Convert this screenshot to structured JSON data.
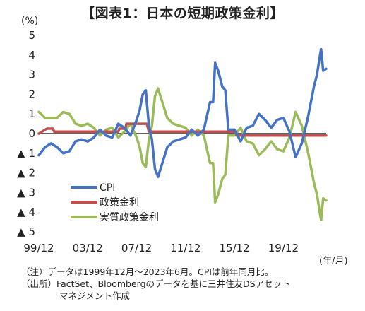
{
  "title": "【図表1：日本の短期政策金利】",
  "y_unit": "(%)",
  "x_unit": "(年/月)",
  "notes": [
    "（注）データは1999年12月～2023年6月。CPIは前年同月比。",
    "（出所）FactSet、Bloombergのデータを基に三井住友DSアセット",
    "マネジメント作成"
  ],
  "colors": {
    "cpi": "#4472c4",
    "policy": "#c0504d",
    "real": "#9bbb59",
    "axis": "#000000"
  },
  "chart_data": {
    "type": "line",
    "title": "【図表1：日本の短期政策金利】",
    "ylabel": "(%)",
    "xlabel": "(年/月)",
    "ylim": [
      -5,
      5
    ],
    "xlim": [
      "1999-12",
      "2023-06"
    ],
    "grid": false,
    "legend_position": "bottom-left",
    "y_ticks": [
      {
        "value": 5,
        "label": "5"
      },
      {
        "value": 4,
        "label": "4"
      },
      {
        "value": 3,
        "label": "3"
      },
      {
        "value": 2,
        "label": "2"
      },
      {
        "value": 1,
        "label": "1"
      },
      {
        "value": 0,
        "label": "0"
      },
      {
        "value": -1,
        "label": "▲ 1"
      },
      {
        "value": -2,
        "label": "▲ 2"
      },
      {
        "value": -3,
        "label": "▲ 3"
      },
      {
        "value": -4,
        "label": "▲ 4"
      },
      {
        "value": -5,
        "label": "▲ 5"
      }
    ],
    "x_ticks": [
      {
        "value": "1999-12",
        "label": "99/12"
      },
      {
        "value": "2003-12",
        "label": "03/12"
      },
      {
        "value": "2007-12",
        "label": "07/12"
      },
      {
        "value": "2011-12",
        "label": "11/12"
      },
      {
        "value": "2015-12",
        "label": "15/12"
      },
      {
        "value": "2019-12",
        "label": "19/12"
      }
    ],
    "series": [
      {
        "name": "CPI",
        "x": [
          "1999-12",
          "2000-06",
          "2000-12",
          "2001-06",
          "2001-12",
          "2002-06",
          "2002-12",
          "2003-06",
          "2003-12",
          "2004-06",
          "2004-12",
          "2005-06",
          "2005-12",
          "2006-06",
          "2006-12",
          "2007-06",
          "2007-12",
          "2008-03",
          "2008-06",
          "2008-09",
          "2008-12",
          "2009-03",
          "2009-06",
          "2009-09",
          "2009-12",
          "2010-06",
          "2010-12",
          "2011-06",
          "2011-12",
          "2012-06",
          "2012-12",
          "2013-06",
          "2013-12",
          "2014-03",
          "2014-05",
          "2014-08",
          "2014-12",
          "2015-03",
          "2015-06",
          "2015-12",
          "2016-06",
          "2016-12",
          "2017-06",
          "2017-12",
          "2018-06",
          "2018-12",
          "2019-06",
          "2019-12",
          "2020-06",
          "2020-12",
          "2021-06",
          "2021-12",
          "2022-06",
          "2022-09",
          "2022-12",
          "2023-01",
          "2023-03",
          "2023-06"
        ],
        "values": [
          -1.1,
          -0.7,
          -0.5,
          -0.7,
          -1.0,
          -0.9,
          -0.4,
          -0.3,
          -0.4,
          -0.2,
          0.2,
          -0.1,
          -0.2,
          0.5,
          0.3,
          -0.1,
          0.7,
          1.2,
          2.0,
          2.2,
          0.4,
          -0.3,
          -1.8,
          -2.2,
          -1.7,
          -0.7,
          -0.4,
          -0.3,
          -0.2,
          0.2,
          -0.1,
          0.2,
          1.6,
          1.6,
          3.6,
          3.2,
          2.4,
          2.2,
          0.2,
          0.2,
          -0.4,
          0.3,
          0.4,
          1.0,
          0.7,
          0.3,
          0.7,
          0.8,
          0.1,
          -1.2,
          -0.5,
          0.8,
          2.4,
          3.0,
          4.0,
          4.3,
          3.2,
          3.3
        ]
      },
      {
        "name": "政策金利",
        "x": [
          "1999-12",
          "2000-08",
          "2001-02",
          "2001-03",
          "2006-06",
          "2006-07",
          "2007-01",
          "2007-02",
          "2008-10",
          "2008-12",
          "2016-01",
          "2016-02",
          "2023-06"
        ],
        "values": [
          0.0,
          0.25,
          0.25,
          0.1,
          0.1,
          0.25,
          0.25,
          0.5,
          0.5,
          0.1,
          0.1,
          -0.1,
          -0.1
        ]
      },
      {
        "name": "実質政策金利",
        "x": [
          "1999-12",
          "2000-06",
          "2000-12",
          "2001-06",
          "2001-12",
          "2002-06",
          "2002-12",
          "2003-06",
          "2003-12",
          "2004-06",
          "2004-12",
          "2005-06",
          "2005-12",
          "2006-06",
          "2006-12",
          "2007-06",
          "2007-12",
          "2008-03",
          "2008-06",
          "2008-09",
          "2008-12",
          "2009-03",
          "2009-06",
          "2009-09",
          "2009-12",
          "2010-06",
          "2010-12",
          "2011-06",
          "2011-12",
          "2012-06",
          "2012-12",
          "2013-06",
          "2013-12",
          "2014-03",
          "2014-05",
          "2014-08",
          "2014-12",
          "2015-03",
          "2015-06",
          "2015-12",
          "2016-06",
          "2016-12",
          "2017-06",
          "2017-12",
          "2018-06",
          "2018-12",
          "2019-06",
          "2019-12",
          "2020-06",
          "2020-12",
          "2021-06",
          "2021-12",
          "2022-06",
          "2022-09",
          "2022-12",
          "2023-01",
          "2023-03",
          "2023-06"
        ],
        "values": [
          1.1,
          0.8,
          0.8,
          0.8,
          1.1,
          1.0,
          0.5,
          0.4,
          0.5,
          0.3,
          -0.1,
          0.2,
          0.3,
          -0.2,
          0.1,
          0.5,
          -0.2,
          -0.7,
          -1.5,
          -1.7,
          -0.3,
          0.4,
          1.9,
          2.3,
          1.8,
          0.8,
          0.5,
          0.4,
          0.3,
          -0.1,
          0.2,
          -0.1,
          -1.5,
          -1.5,
          -3.5,
          -3.1,
          -2.3,
          -2.1,
          -0.1,
          -0.1,
          0.3,
          -0.4,
          -0.5,
          -1.1,
          -0.8,
          -0.4,
          -0.8,
          -0.9,
          -0.2,
          1.1,
          0.4,
          -0.9,
          -2.5,
          -3.1,
          -4.1,
          -4.4,
          -3.3,
          -3.4
        ]
      }
    ]
  }
}
